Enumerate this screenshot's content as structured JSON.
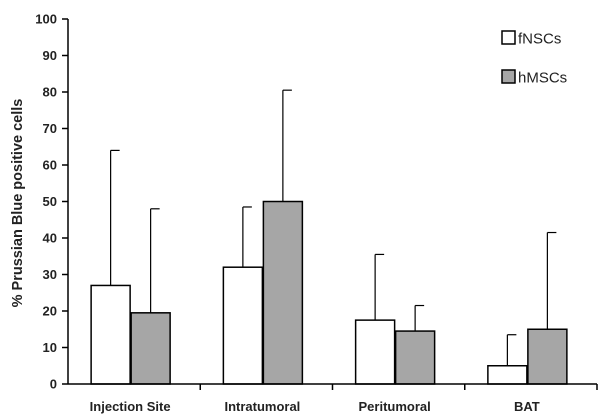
{
  "chart_data": {
    "type": "bar",
    "title": "",
    "xlabel": "",
    "ylabel": "% Prussian Blue positive cells",
    "ylim": [
      0,
      100
    ],
    "yticks": [
      0,
      10,
      20,
      30,
      40,
      50,
      60,
      70,
      80,
      90,
      100
    ],
    "categories": [
      "Injection Site",
      "Intratumoral",
      "Peritumoral",
      "BAT"
    ],
    "series": [
      {
        "name": "fNSCs",
        "color": "#ffffff",
        "values": [
          27,
          32,
          17.5,
          5
        ],
        "error": [
          37,
          16.5,
          18,
          8.5
        ]
      },
      {
        "name": "hMSCs",
        "color": "#a6a6a6",
        "values": [
          19.5,
          50,
          14.5,
          15
        ],
        "error": [
          28.5,
          30.5,
          7,
          26.5
        ]
      }
    ],
    "error_bars": "upper",
    "grid": false,
    "legend": "top-right"
  }
}
